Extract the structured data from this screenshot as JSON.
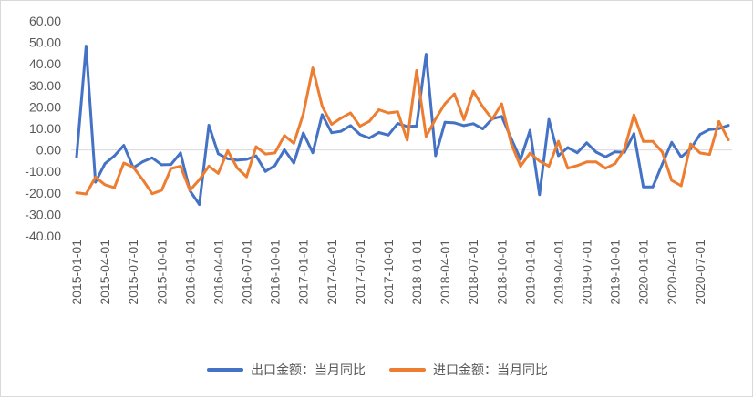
{
  "chart_data": {
    "type": "line",
    "title": "",
    "xlabel": "",
    "ylabel": "",
    "ylim": [
      -40,
      60
    ],
    "yticks": [
      60,
      50,
      40,
      30,
      20,
      10,
      0,
      -10,
      -20,
      -30,
      -40
    ],
    "ytick_labels": [
      "60.00",
      "50.00",
      "40.00",
      "30.00",
      "20.00",
      "10.00",
      "0.00",
      "-10.00",
      "-20.00",
      "-30.00",
      "-40.00"
    ],
    "grid": false,
    "legend": "bottom",
    "x": [
      "2015-01",
      "2015-02",
      "2015-03",
      "2015-04",
      "2015-05",
      "2015-06",
      "2015-07",
      "2015-08",
      "2015-09",
      "2015-10",
      "2015-11",
      "2015-12",
      "2016-01",
      "2016-02",
      "2016-03",
      "2016-04",
      "2016-05",
      "2016-06",
      "2016-07",
      "2016-08",
      "2016-09",
      "2016-10",
      "2016-11",
      "2016-12",
      "2017-01",
      "2017-02",
      "2017-03",
      "2017-04",
      "2017-05",
      "2017-06",
      "2017-07",
      "2017-08",
      "2017-09",
      "2017-10",
      "2017-11",
      "2017-12",
      "2018-01",
      "2018-02",
      "2018-03",
      "2018-04",
      "2018-05",
      "2018-06",
      "2018-07",
      "2018-08",
      "2018-09",
      "2018-10",
      "2018-11",
      "2018-12",
      "2019-01",
      "2019-02",
      "2019-03",
      "2019-04",
      "2019-05",
      "2019-06",
      "2019-07",
      "2019-08",
      "2019-09",
      "2019-10",
      "2019-11",
      "2019-12",
      "2020-01",
      "2020-02",
      "2020-03",
      "2020-04",
      "2020-05",
      "2020-06",
      "2020-07",
      "2020-08",
      "2020-09",
      "2020-10"
    ],
    "x_tick_labels": [
      "2015-01-01",
      "2015-04-01",
      "2015-07-01",
      "2015-10-01",
      "2016-01-01",
      "2016-04-01",
      "2016-07-01",
      "2016-10-01",
      "2017-01-01",
      "2017-04-01",
      "2017-07-01",
      "2017-10-01",
      "2018-01-01",
      "2018-04-01",
      "2018-07-01",
      "2018-10-01",
      "2019-01-01",
      "2019-04-01",
      "2019-07-01",
      "2019-10-01",
      "2020-01-01",
      "2020-04-01",
      "2020-07-01"
    ],
    "series": [
      {
        "name": "出口金额：当月同比",
        "color": "#4472c4",
        "values": [
          -3.3,
          48.3,
          -15.0,
          -6.4,
          -2.8,
          2.1,
          -8.3,
          -5.5,
          -3.7,
          -6.9,
          -6.8,
          -1.4,
          -19.0,
          -25.4,
          11.5,
          -1.8,
          -4.1,
          -4.8,
          -4.4,
          -2.8,
          -10.0,
          -7.3,
          0.1,
          -6.1,
          7.9,
          -1.3,
          16.4,
          8.0,
          8.7,
          11.3,
          7.2,
          5.5,
          8.1,
          6.9,
          12.3,
          10.9,
          11.1,
          44.5,
          -2.7,
          12.9,
          12.6,
          11.3,
          12.2,
          9.8,
          14.5,
          15.6,
          5.4,
          -4.4,
          9.1,
          -20.8,
          14.2,
          -2.7,
          1.1,
          -1.3,
          3.3,
          -1.0,
          -3.2,
          -0.9,
          -1.1,
          7.6,
          -17.2,
          -17.2,
          -6.6,
          3.5,
          -3.3,
          0.5,
          7.2,
          9.5,
          9.9,
          11.4
        ]
      },
      {
        "name": "进口金额：当月同比",
        "color": "#ed7d31",
        "values": [
          -19.9,
          -20.5,
          -12.7,
          -16.2,
          -17.6,
          -6.1,
          -8.1,
          -13.8,
          -20.4,
          -18.8,
          -8.7,
          -7.6,
          -18.8,
          -13.8,
          -7.6,
          -10.9,
          -0.4,
          -8.4,
          -12.5,
          1.5,
          -1.9,
          -1.4,
          6.7,
          3.1,
          16.7,
          38.1,
          20.3,
          11.9,
          14.8,
          17.2,
          11.0,
          13.3,
          18.7,
          17.2,
          17.7,
          4.5,
          36.9,
          6.3,
          14.4,
          21.5,
          26.0,
          14.1,
          27.3,
          20.0,
          14.3,
          21.4,
          3.0,
          -7.6,
          -1.5,
          -5.2,
          -7.6,
          4.0,
          -8.5,
          -7.3,
          -5.6,
          -5.6,
          -8.5,
          -6.4,
          0.3,
          16.3,
          4.0,
          4.0,
          -1.0,
          -14.2,
          -16.7,
          2.7,
          -1.4,
          -2.1,
          13.2,
          4.7
        ]
      }
    ]
  }
}
